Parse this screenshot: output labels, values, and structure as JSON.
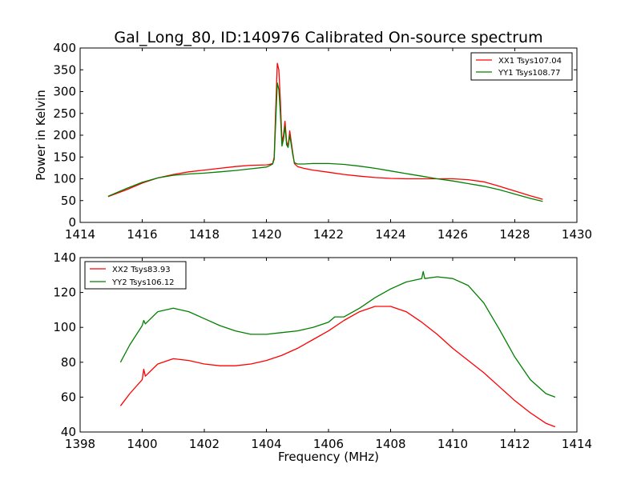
{
  "title": "Gal_Long_80, ID:140976 Calibrated On-source spectrum",
  "colors": {
    "xx": "#ff0000",
    "yy": "#008000"
  },
  "chart_data": [
    {
      "type": "line",
      "title": "Gal_Long_80, ID:140976 Calibrated On-source spectrum",
      "xlabel": "",
      "ylabel": "Power in Kelvin",
      "xlim": [
        1414,
        1430
      ],
      "ylim": [
        0,
        400
      ],
      "xticks": [
        1414,
        1416,
        1418,
        1420,
        1422,
        1424,
        1426,
        1428,
        1430
      ],
      "yticks": [
        0,
        50,
        100,
        150,
        200,
        250,
        300,
        350,
        400
      ],
      "legend": "top-right",
      "series": [
        {
          "name": "XX1 Tsys107.04",
          "color": "#ff0000",
          "x": [
            1414.9,
            1415.5,
            1416.0,
            1416.5,
            1417.0,
            1417.5,
            1418.0,
            1418.5,
            1419.0,
            1419.5,
            1420.0,
            1420.1,
            1420.2,
            1420.25,
            1420.3,
            1420.35,
            1420.4,
            1420.45,
            1420.5,
            1420.55,
            1420.6,
            1420.65,
            1420.7,
            1420.75,
            1420.8,
            1420.85,
            1420.9,
            1421.0,
            1421.2,
            1421.5,
            1422.0,
            1422.5,
            1423.0,
            1423.5,
            1424.0,
            1424.5,
            1425.0,
            1425.5,
            1426.0,
            1426.5,
            1427.0,
            1427.5,
            1428.0,
            1428.5,
            1428.9
          ],
          "values": [
            59,
            75,
            90,
            102,
            110,
            116,
            120,
            124,
            128,
            131,
            132,
            133,
            135,
            150,
            260,
            365,
            350,
            280,
            185,
            200,
            232,
            185,
            175,
            210,
            185,
            160,
            135,
            128,
            124,
            120,
            115,
            110,
            106,
            103,
            101,
            100,
            100,
            100,
            100,
            98,
            93,
            83,
            72,
            61,
            53
          ]
        },
        {
          "name": "YY1 Tsys108.77",
          "color": "#008000",
          "x": [
            1414.9,
            1415.5,
            1416.0,
            1416.5,
            1417.0,
            1417.5,
            1418.0,
            1418.5,
            1419.0,
            1419.5,
            1420.0,
            1420.1,
            1420.2,
            1420.25,
            1420.3,
            1420.35,
            1420.4,
            1420.45,
            1420.5,
            1420.55,
            1420.6,
            1420.65,
            1420.7,
            1420.75,
            1420.8,
            1420.85,
            1420.9,
            1421.0,
            1421.2,
            1421.5,
            1422.0,
            1422.5,
            1423.0,
            1423.5,
            1424.0,
            1424.5,
            1425.0,
            1425.5,
            1426.0,
            1426.5,
            1427.0,
            1427.5,
            1428.0,
            1428.5,
            1428.9
          ],
          "values": [
            60,
            78,
            92,
            102,
            108,
            111,
            113,
            116,
            119,
            123,
            127,
            130,
            134,
            145,
            230,
            320,
            305,
            250,
            175,
            190,
            220,
            178,
            172,
            200,
            178,
            155,
            137,
            134,
            134,
            135,
            135,
            133,
            129,
            124,
            118,
            112,
            106,
            100,
            95,
            89,
            83,
            75,
            65,
            55,
            48
          ]
        }
      ]
    },
    {
      "type": "line",
      "title": "",
      "xlabel": "Frequency (MHz)",
      "ylabel": "",
      "xlim": [
        1398,
        1414
      ],
      "ylim": [
        40,
        140
      ],
      "xticks": [
        1398,
        1400,
        1402,
        1404,
        1406,
        1408,
        1410,
        1412,
        1414
      ],
      "yticks": [
        40,
        60,
        80,
        100,
        120,
        140
      ],
      "legend": "top-left",
      "series": [
        {
          "name": "XX2 Tsys83.93",
          "color": "#ff0000",
          "x": [
            1399.3,
            1399.6,
            1400.0,
            1400.05,
            1400.1,
            1400.5,
            1401.0,
            1401.5,
            1402.0,
            1402.5,
            1403.0,
            1403.5,
            1404.0,
            1404.5,
            1405.0,
            1405.5,
            1406.0,
            1406.5,
            1407.0,
            1407.5,
            1408.0,
            1408.5,
            1409.0,
            1409.5,
            1410.0,
            1410.5,
            1411.0,
            1411.5,
            1412.0,
            1412.5,
            1413.0,
            1413.3
          ],
          "values": [
            55,
            62,
            70,
            76,
            72,
            79,
            82,
            81,
            79,
            78,
            78,
            79,
            81,
            84,
            88,
            93,
            98,
            104,
            109,
            112,
            112,
            109,
            103,
            96,
            88,
            81,
            74,
            66,
            58,
            51,
            45,
            43
          ]
        },
        {
          "name": "YY2 Tsys106.12",
          "color": "#008000",
          "x": [
            1399.3,
            1399.6,
            1400.0,
            1400.05,
            1400.1,
            1400.5,
            1401.0,
            1401.5,
            1402.0,
            1402.5,
            1403.0,
            1403.5,
            1404.0,
            1404.5,
            1405.0,
            1405.5,
            1406.0,
            1406.2,
            1406.5,
            1407.0,
            1407.5,
            1408.0,
            1408.5,
            1409.0,
            1409.05,
            1409.1,
            1409.5,
            1410.0,
            1410.5,
            1411.0,
            1411.5,
            1412.0,
            1412.5,
            1413.0,
            1413.3
          ],
          "values": [
            80,
            90,
            101,
            104,
            102,
            109,
            111,
            109,
            105,
            101,
            98,
            96,
            96,
            97,
            98,
            100,
            103,
            106,
            106,
            111,
            117,
            122,
            126,
            128,
            132,
            128,
            129,
            128,
            124,
            114,
            99,
            83,
            70,
            62,
            60
          ]
        }
      ]
    }
  ]
}
